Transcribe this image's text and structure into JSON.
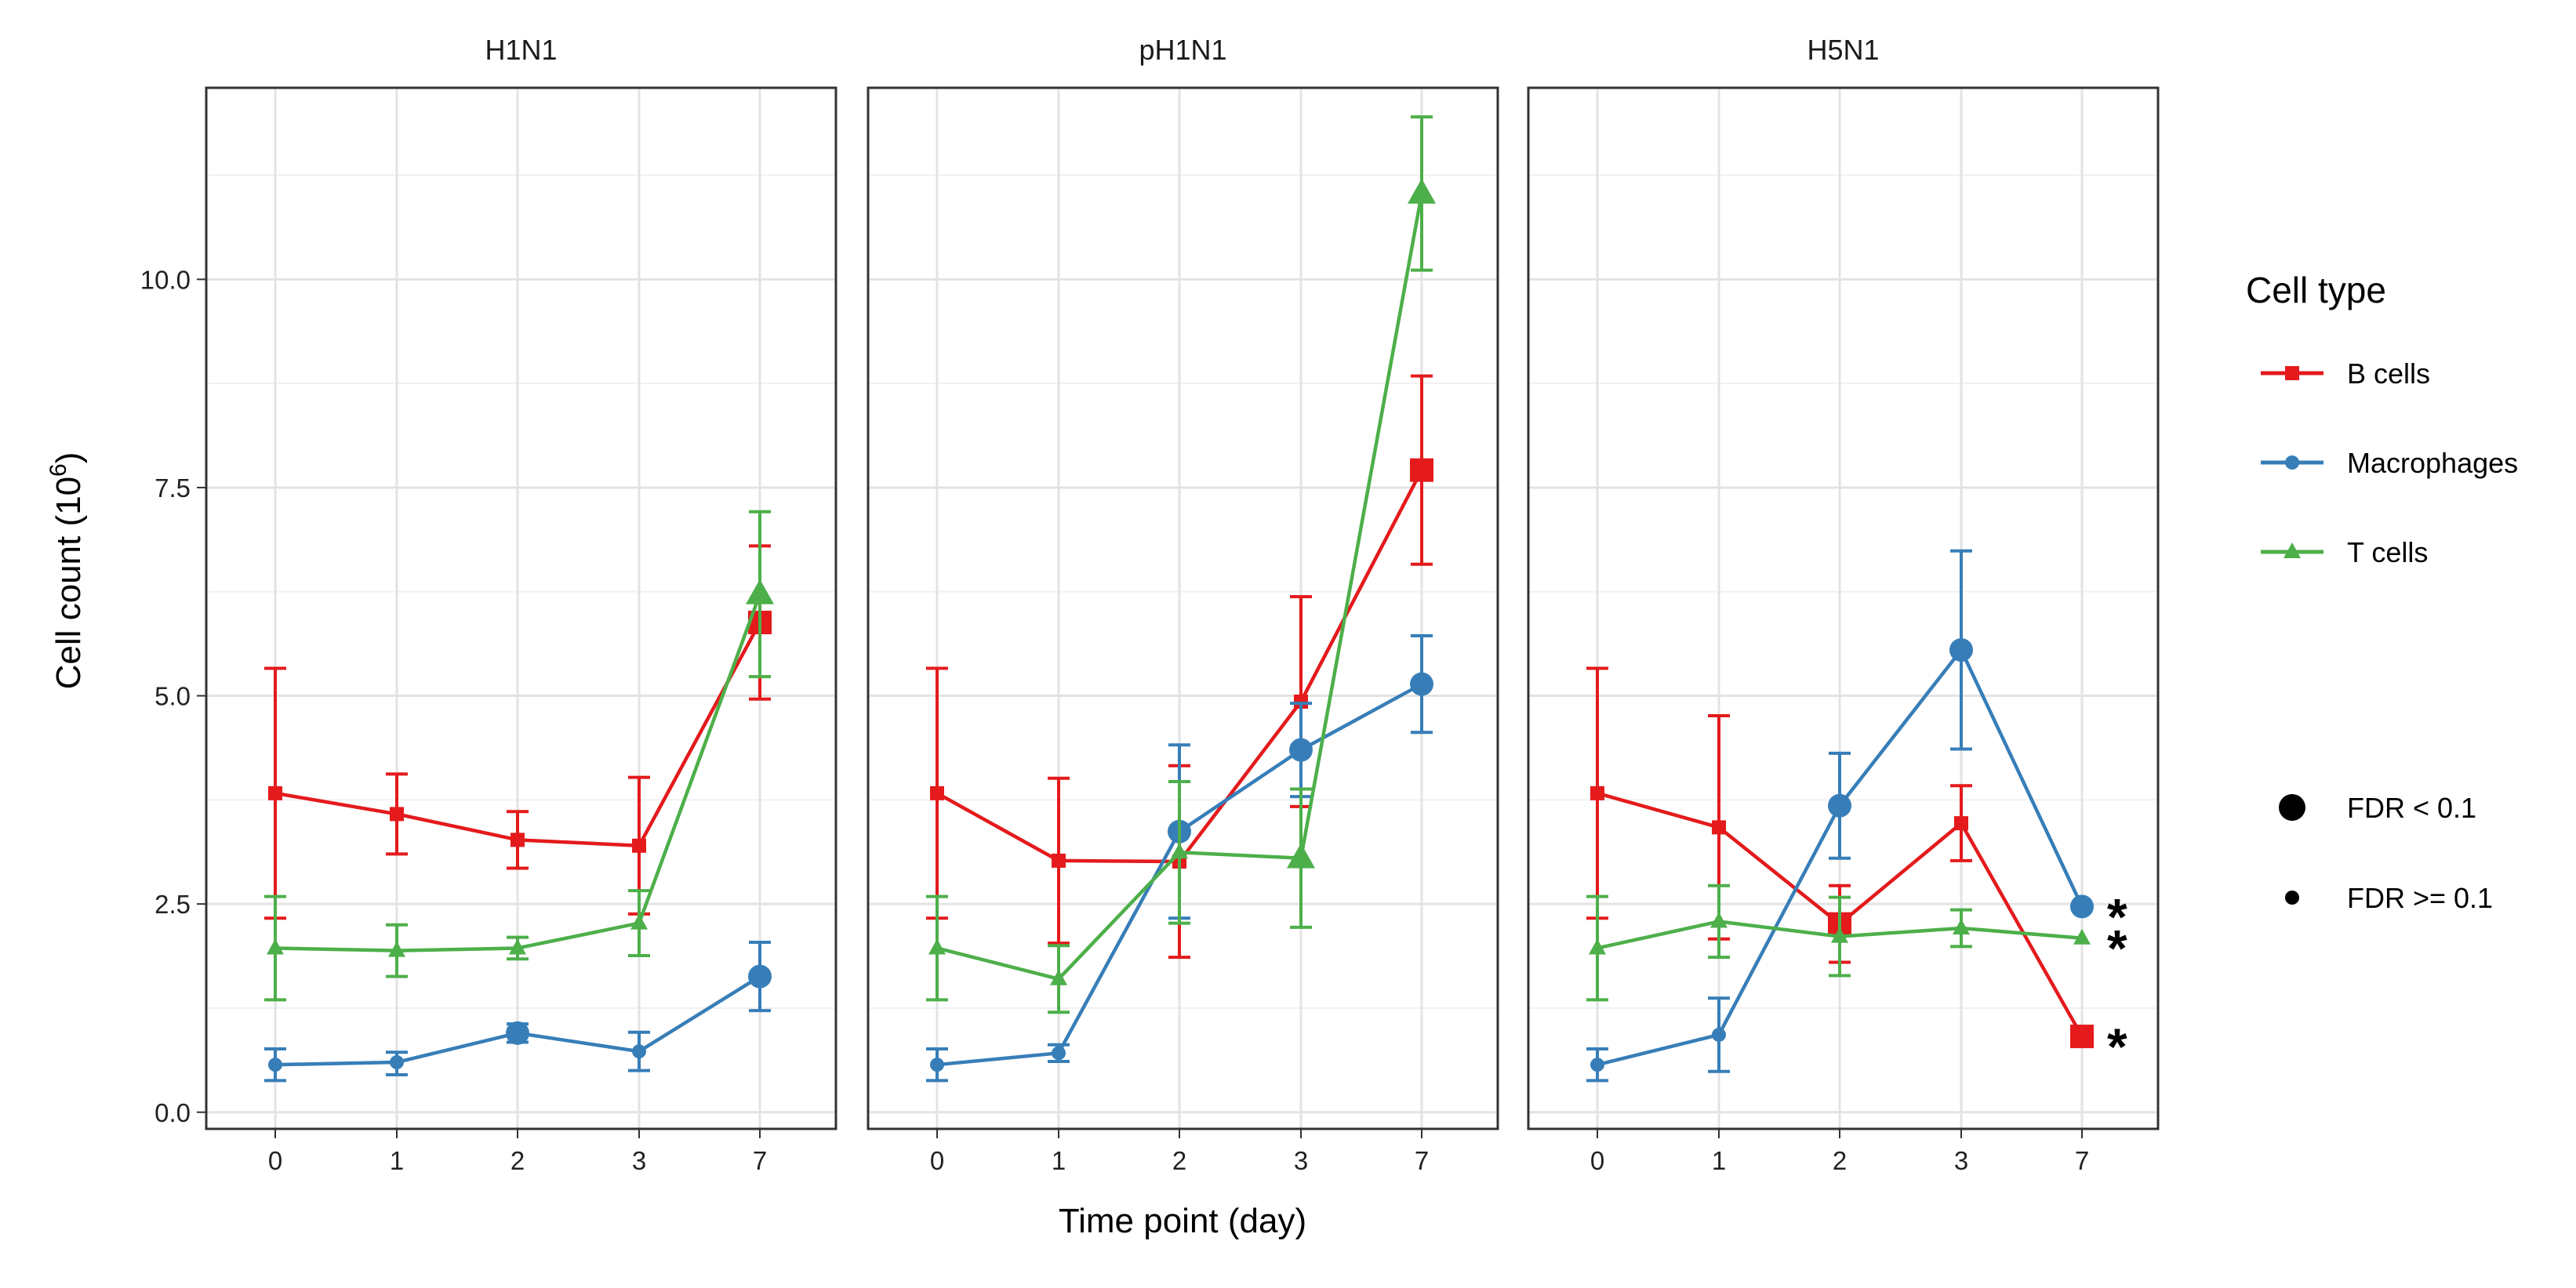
{
  "chart_data": {
    "type": "line",
    "facet_variable": "strain",
    "panels": [
      {
        "title": "H1N1",
        "series": [
          {
            "name": "B cells",
            "values": [
              3.83,
              3.58,
              3.27,
              3.2,
              5.88
            ],
            "err": [
              [
                2.33,
                5.33
              ],
              [
                3.1,
                4.06
              ],
              [
                2.93,
                3.61
              ],
              [
                2.38,
                4.02
              ],
              [
                4.96,
                6.8
              ]
            ],
            "fdr": [
              "low",
              "low",
              "low",
              "low",
              "high"
            ]
          },
          {
            "name": "Macrophages",
            "values": [
              0.57,
              0.6,
              0.95,
              0.73,
              1.63
            ],
            "err": [
              [
                0.38,
                0.76
              ],
              [
                0.45,
                0.72
              ],
              [
                0.84,
                1.06
              ],
              [
                0.5,
                0.96
              ],
              [
                1.22,
                2.04
              ]
            ],
            "fdr": [
              "low",
              "low",
              "high",
              "low",
              "high"
            ]
          },
          {
            "name": "T cells",
            "values": [
              1.97,
              1.94,
              1.97,
              2.27,
              6.22
            ],
            "err": [
              [
                1.35,
                2.59
              ],
              [
                1.63,
                2.25
              ],
              [
                1.84,
                2.1
              ],
              [
                1.88,
                2.66
              ],
              [
                5.23,
                7.21
              ]
            ],
            "fdr": [
              "low",
              "low",
              "low",
              "low",
              "high"
            ]
          }
        ],
        "stars": []
      },
      {
        "title": "pH1N1",
        "series": [
          {
            "name": "B cells",
            "values": [
              3.83,
              3.02,
              3.01,
              4.93,
              7.71
            ],
            "err": [
              [
                2.33,
                5.33
              ],
              [
                2.03,
                4.01
              ],
              [
                1.86,
                4.16
              ],
              [
                3.67,
                6.19
              ],
              [
                6.58,
                8.84
              ]
            ],
            "fdr": [
              "low",
              "low",
              "low",
              "low",
              "high"
            ]
          },
          {
            "name": "Macrophages",
            "values": [
              0.57,
              0.71,
              3.37,
              4.35,
              5.14
            ],
            "err": [
              [
                0.38,
                0.76
              ],
              [
                0.61,
                0.81
              ],
              [
                2.33,
                4.41
              ],
              [
                3.79,
                4.91
              ],
              [
                4.56,
                5.72
              ]
            ],
            "fdr": [
              "low",
              "low",
              "high",
              "high",
              "high"
            ]
          },
          {
            "name": "T cells",
            "values": [
              1.97,
              1.6,
              3.12,
              3.05,
              11.03
            ],
            "err": [
              [
                1.35,
                2.59
              ],
              [
                1.2,
                2.0
              ],
              [
                2.27,
                3.97
              ],
              [
                2.22,
                3.88
              ],
              [
                10.11,
                11.95
              ]
            ],
            "fdr": [
              "low",
              "low",
              "low",
              "high",
              "high"
            ]
          }
        ],
        "stars": []
      },
      {
        "title": "H5N1",
        "series": [
          {
            "name": "B cells",
            "values": [
              3.83,
              3.42,
              2.26,
              3.47,
              0.91
            ],
            "err": [
              [
                2.33,
                5.33
              ],
              [
                2.08,
                4.76
              ],
              [
                1.8,
                2.72
              ],
              [
                3.02,
                3.92
              ],
              [
                0.91,
                0.91
              ]
            ],
            "fdr": [
              "low",
              "low",
              "high",
              "low",
              "high"
            ]
          },
          {
            "name": "Macrophages",
            "values": [
              0.57,
              0.93,
              3.68,
              5.55,
              2.47
            ],
            "err": [
              [
                0.38,
                0.76
              ],
              [
                0.49,
                1.37
              ],
              [
                3.05,
                4.31
              ],
              [
                4.36,
                6.74
              ],
              [
                2.47,
                2.47
              ]
            ],
            "fdr": [
              "low",
              "low",
              "high",
              "high",
              "high"
            ]
          },
          {
            "name": "T cells",
            "values": [
              1.97,
              2.29,
              2.11,
              2.21,
              2.09
            ],
            "err": [
              [
                1.35,
                2.59
              ],
              [
                1.86,
                2.72
              ],
              [
                1.64,
                2.58
              ],
              [
                1.99,
                2.43
              ],
              [
                2.09,
                2.09
              ]
            ],
            "fdr": [
              "low",
              "low",
              "low",
              "low",
              "low"
            ]
          }
        ],
        "stars": [
          {
            "series": "Macrophages",
            "label": "*"
          },
          {
            "series": "T cells",
            "label": "*"
          },
          {
            "series": "B cells",
            "label": "*"
          }
        ]
      }
    ],
    "categories": [
      "0",
      "1",
      "2",
      "3",
      "7"
    ],
    "ylim": [
      -0.2,
      12.3
    ],
    "yticks": [
      0.0,
      2.5,
      5.0,
      7.5,
      10.0
    ],
    "ytick_labels": [
      "0.0",
      "2.5",
      "5.0",
      "7.5",
      "10.0"
    ],
    "xlabel": "Time point (day)",
    "ylabel": "Cell count (10",
    "ylabel_superscript": "6",
    "ylabel_suffix": ")",
    "legend": {
      "title": "Cell type",
      "placement": "right",
      "items": [
        {
          "name": "B cells",
          "color": "#e41a1c",
          "shape": "square"
        },
        {
          "name": "Macrophages",
          "color": "#377eb8",
          "shape": "circle"
        },
        {
          "name": "T cells",
          "color": "#4daf4a",
          "shape": "triangle"
        }
      ],
      "size_items": [
        {
          "label": "FDR < 0.1",
          "size": "large"
        },
        {
          "label": "FDR >= 0.1",
          "size": "small"
        }
      ]
    },
    "colors": {
      "B cells": "#e41a1c",
      "Macrophages": "#377eb8",
      "T cells": "#4daf4a"
    }
  }
}
